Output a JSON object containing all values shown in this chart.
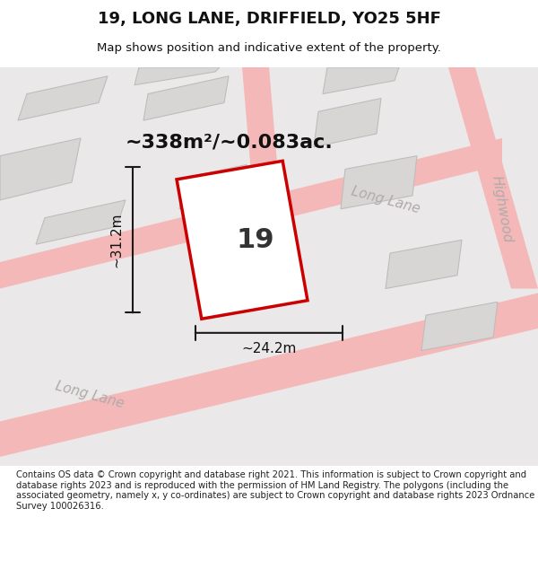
{
  "title_line1": "19, LONG LANE, DRIFFIELD, YO25 5HF",
  "title_line2": "Map shows position and indicative extent of the property.",
  "area_label": "~338m²/~0.083ac.",
  "property_number": "19",
  "width_label": "~24.2m",
  "height_label": "~31.2m",
  "footer_text": "Contains OS data © Crown copyright and database right 2021. This information is subject to Crown copyright and database rights 2023 and is reproduced with the permission of HM Land Registry. The polygons (including the associated geometry, namely x, y co-ordinates) are subject to Crown copyright and database rights 2023 Ordnance Survey 100026316.",
  "bg_color": "#f0eeee",
  "map_bg": "#e8e6e6",
  "road_color": "#f5b8b8",
  "building_color": "#d8d5d5",
  "property_outline_color": "#cc0000",
  "dim_line_color": "#1a1a1a",
  "title_color": "#111111",
  "street_label_color": "#aaaaaa",
  "highwood_label": "Highwood",
  "longlane_label1": "Long Lane",
  "longlane_label2": "Long Lane"
}
